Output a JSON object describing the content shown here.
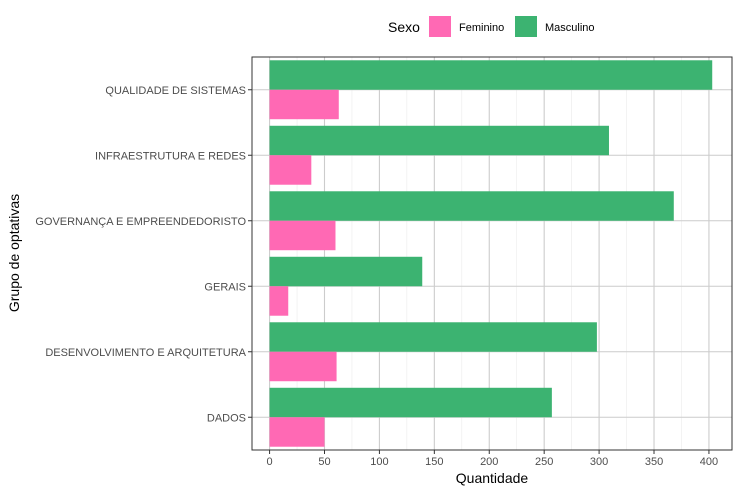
{
  "chart_data": {
    "type": "bar",
    "orientation": "horizontal",
    "categories": [
      "QUALIDADE DE SISTEMAS",
      "INFRAESTRUTURA E REDES",
      "GOVERNANÇA E EMPREENDEDORISTO",
      "GERAIS",
      "DESENVOLVIMENTO E ARQUITETURA",
      "DADOS"
    ],
    "series": [
      {
        "name": "Feminino",
        "color": "#FF69B4",
        "values": [
          63,
          38,
          60,
          17,
          61,
          50
        ]
      },
      {
        "name": "Masculino",
        "color": "#3CB371",
        "values": [
          403,
          309,
          368,
          139,
          298,
          257
        ]
      }
    ],
    "xlabel": "Quantidade",
    "ylabel": "Grupo de optativas",
    "xlim": [
      -16,
      421
    ],
    "xticks": [
      0,
      50,
      100,
      150,
      200,
      250,
      300,
      350,
      400
    ],
    "legend": {
      "title": "Sexo",
      "position": "top"
    },
    "grid": true
  }
}
